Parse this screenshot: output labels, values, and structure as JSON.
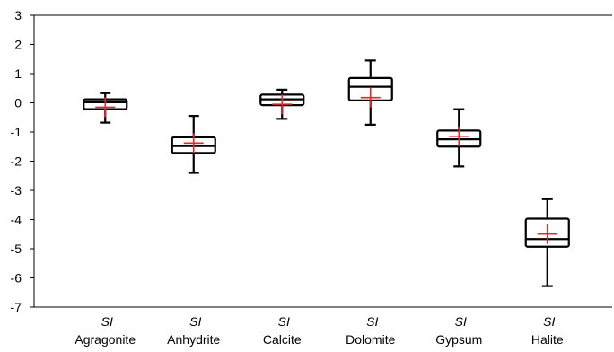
{
  "chart_data": {
    "type": "box",
    "ylim": [
      -7,
      3
    ],
    "yticks": [
      3,
      2,
      1,
      0,
      -1,
      -2,
      -3,
      -4,
      -5,
      -6,
      -7
    ],
    "categories": [
      {
        "prefix": "SI",
        "name": "Agragonite"
      },
      {
        "prefix": "SI",
        "name": "Anhydrite"
      },
      {
        "prefix": "SI",
        "name": "Calcite"
      },
      {
        "prefix": "SI",
        "name": "Dolomite"
      },
      {
        "prefix": "SI",
        "name": "Gypsum"
      },
      {
        "prefix": "SI",
        "name": "Halite"
      }
    ],
    "boxes": [
      {
        "min": -0.68,
        "q1": -0.22,
        "median": 0.02,
        "q3": 0.12,
        "max": 0.33,
        "mean": -0.15
      },
      {
        "min": -2.4,
        "q1": -1.72,
        "median": -1.48,
        "q3": -1.18,
        "max": -0.45,
        "mean": -1.38
      },
      {
        "min": -0.55,
        "q1": -0.08,
        "median": 0.12,
        "q3": 0.28,
        "max": 0.45,
        "mean": -0.05
      },
      {
        "min": -0.75,
        "q1": 0.08,
        "median": 0.55,
        "q3": 0.85,
        "max": 1.45,
        "mean": 0.18
      },
      {
        "min": -2.18,
        "q1": -1.5,
        "median": -1.25,
        "q3": -0.95,
        "max": -0.22,
        "mean": -1.15
      },
      {
        "min": -6.28,
        "q1": -4.93,
        "median": -4.67,
        "q3": -3.97,
        "max": -3.3,
        "mean": -4.5
      }
    ],
    "grid": false,
    "legend": "none",
    "colors": {
      "box": "#000000",
      "mean_marker": "#e8262b",
      "axis": "#000000"
    }
  }
}
